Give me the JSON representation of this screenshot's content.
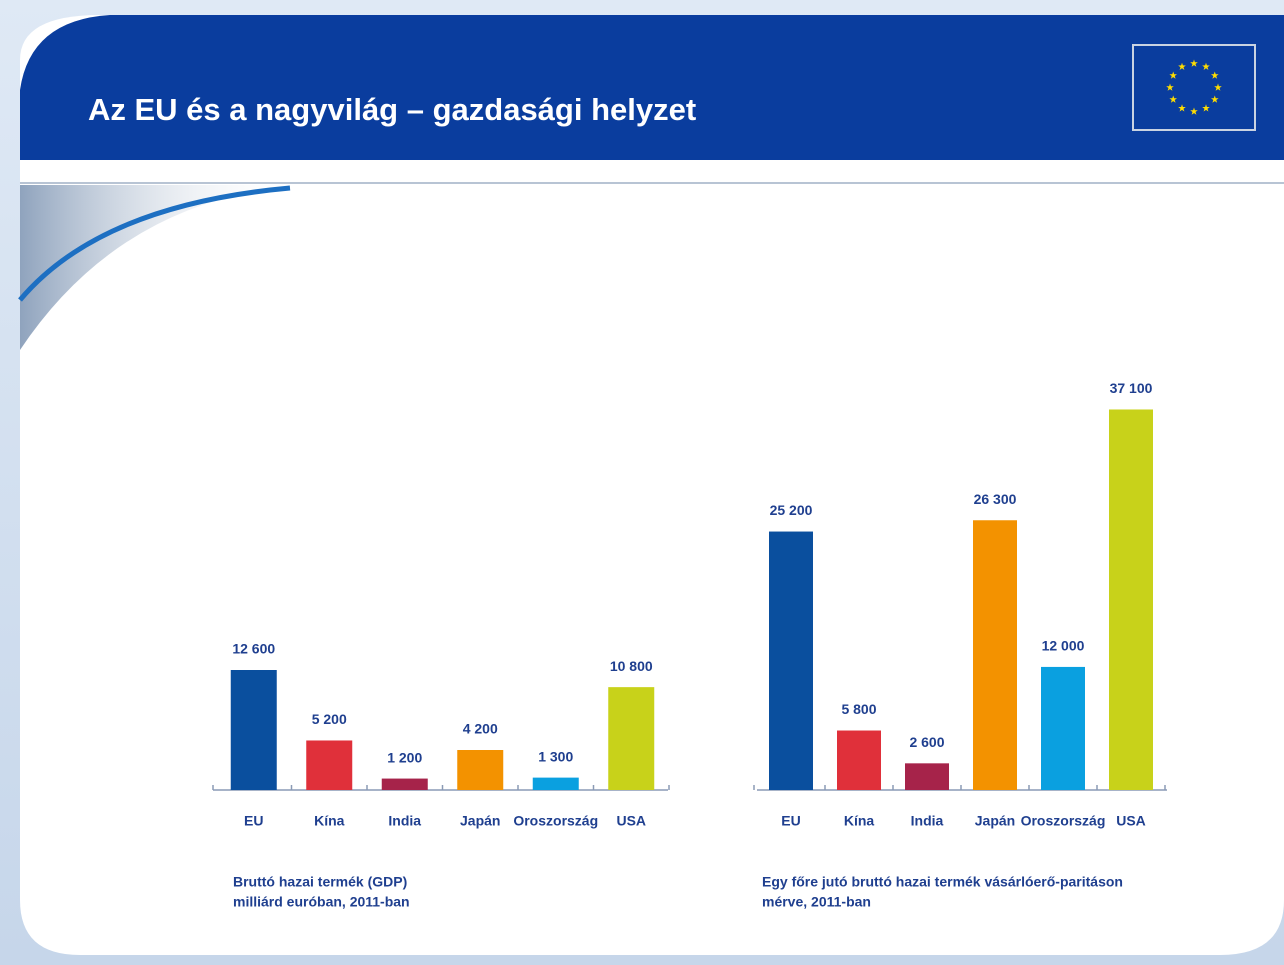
{
  "title": "Az EU és a nagyvilág – gazdasági helyzet",
  "chart_data": [
    {
      "type": "bar",
      "caption": [
        "Bruttó hazai termék (GDP)",
        "milliárd euróban, 2011-ban"
      ],
      "categories": [
        "EU",
        "Kína",
        "India",
        "Japán",
        "Oroszország",
        "USA"
      ],
      "values": [
        12600,
        5200,
        1200,
        4200,
        1300,
        10800
      ],
      "value_labels": [
        "12 600",
        "5 200",
        "1 200",
        "4 200",
        "1 300",
        "10 800"
      ],
      "colors": [
        "#0a4f9e",
        "#e0303a",
        "#a6234a",
        "#f39200",
        "#0aa0e0",
        "#c8d21a"
      ],
      "ylim": [
        0,
        42000
      ]
    },
    {
      "type": "bar",
      "caption": [
        "Egy főre jutó bruttó hazai termék vásárlóerő-paritáson",
        "mérve, 2011-ban"
      ],
      "categories": [
        "EU",
        "Kína",
        "India",
        "Japán",
        "Oroszország",
        "USA"
      ],
      "values": [
        25200,
        5800,
        2600,
        26300,
        12000,
        37100
      ],
      "value_labels": [
        "25 200",
        "5 800",
        "2 600",
        "26 300",
        "12 000",
        "37 100"
      ],
      "colors": [
        "#0a4f9e",
        "#e0303a",
        "#a6234a",
        "#f39200",
        "#0aa0e0",
        "#c8d21a"
      ],
      "ylim": [
        0,
        39000
      ]
    }
  ]
}
